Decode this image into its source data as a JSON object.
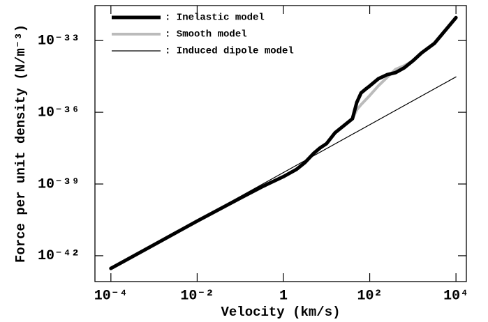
{
  "chart_data": {
    "type": "line",
    "xlabel": "Velocity (km/s)",
    "ylabel": "Force per unit density (N/m⁻³)",
    "xscale": "log",
    "yscale": "log",
    "xlim": [
      4.27e-05,
      17400.0
    ],
    "ylim": [
      8.3e-44,
      2.9e-32
    ],
    "xticks": [
      {
        "value": 0.0001,
        "label": "10⁻⁴"
      },
      {
        "value": 0.01,
        "label": "10⁻²"
      },
      1,
      {
        "value": 100,
        "label": "10²"
      },
      {
        "value": 10000,
        "label": "10⁴"
      }
    ],
    "yticks": [
      {
        "value": 1e-42,
        "label": "10⁻⁴²"
      },
      {
        "value": 1e-39,
        "label": "10⁻³⁹"
      },
      {
        "value": 1e-36,
        "label": "10⁻³⁶"
      },
      {
        "value": 1e-33,
        "label": "10⁻³³"
      }
    ],
    "legend": "upper left",
    "series": [
      {
        "name": ": Inelastic model",
        "color": "#000000",
        "width": 5,
        "x": [
          0.0001,
          0.001,
          0.01,
          0.1,
          0.316,
          1,
          2,
          3.16,
          5.01,
          7.08,
          10,
          15.8,
          25.1,
          39.8,
          50.1,
          63.1,
          79.4,
          100,
          158,
          251,
          398,
          631,
          1000,
          1585,
          3162,
          10000
        ],
        "values": [
          2.95e-43,
          2.88e-42,
          2.82e-41,
          2.57e-40,
          7.59e-40,
          2.04e-39,
          4.07e-39,
          7.94e-39,
          1.91e-38,
          3.24e-38,
          4.9e-38,
          1.41e-37,
          2.75e-37,
          5.37e-37,
          2.57e-36,
          6.46e-36,
          9.12e-36,
          1.26e-35,
          2.51e-35,
          3.72e-35,
          4.57e-35,
          7.24e-35,
          1.41e-34,
          3.02e-34,
          7.59e-34,
          9.12e-33
        ]
      },
      {
        "name": ": Smooth model",
        "color": "#bbbbbb",
        "width": 4,
        "x": [
          0.0001,
          0.001,
          0.01,
          0.1,
          0.316,
          1,
          2,
          3.16,
          5.01,
          7.08,
          10,
          15.8,
          25.1,
          39.8,
          50.1,
          63.1,
          79.4,
          100,
          158,
          251,
          398,
          631,
          1000,
          1585,
          3162,
          10000
        ],
        "values": [
          2.95e-43,
          2.88e-42,
          2.82e-41,
          2.57e-40,
          7.59e-40,
          2.04e-39,
          4.07e-39,
          7.94e-39,
          1.91e-38,
          3.24e-38,
          4.9e-38,
          1.41e-37,
          2.75e-37,
          5.37e-37,
          1.26e-36,
          2.09e-36,
          3.24e-36,
          5.01e-36,
          1.26e-35,
          2.82e-35,
          6.31e-35,
          8.91e-35,
          1.41e-34,
          3.02e-34,
          7.59e-34,
          9.12e-33
        ]
      },
      {
        "name": ": Induced dipole model",
        "color": "#000000",
        "width": 1.2,
        "x": [
          0.0001,
          10000
        ],
        "values": [
          3.02e-43,
          3.02e-35
        ]
      }
    ]
  }
}
